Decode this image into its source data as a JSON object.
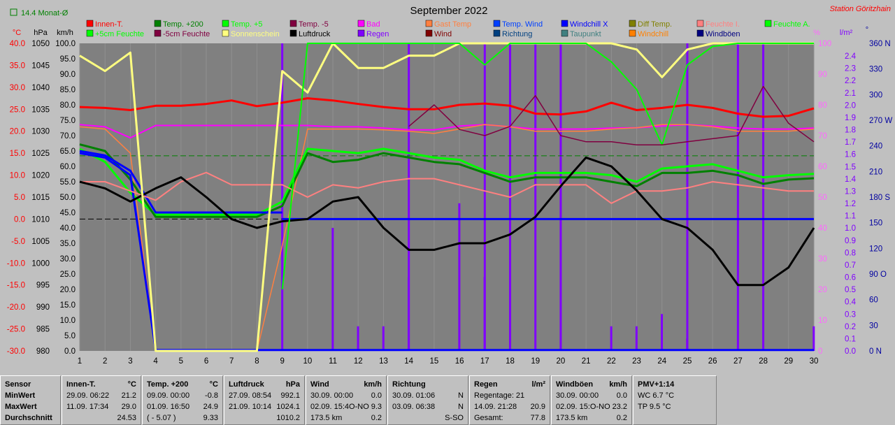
{
  "top_label": "14.4 Monat-Ø",
  "station": "Station Göritzhain",
  "chart_data": {
    "type": "line",
    "title": "September 2022",
    "x": [
      1,
      2,
      3,
      4,
      5,
      6,
      7,
      8,
      9,
      10,
      11,
      12,
      13,
      14,
      15,
      16,
      17,
      18,
      19,
      20,
      21,
      22,
      23,
      24,
      25,
      26,
      27,
      28,
      29,
      30
    ],
    "xlim": [
      1,
      30
    ],
    "axes": {
      "temp": {
        "unit": "°C",
        "range": [
          -30,
          40
        ],
        "ticks": [
          "40.0",
          "35.0",
          "30.0",
          "25.0",
          "20.0",
          "15.0",
          "10.0",
          "5.0",
          "0.0",
          "-5.0",
          "-10.0",
          "-15.0",
          "-20.0",
          "-25.0",
          "-30.0"
        ],
        "color": "#ff0000"
      },
      "press": {
        "unit": "hPa",
        "range": [
          980,
          1050
        ],
        "ticks": [
          "1050",
          "1045",
          "1040",
          "1035",
          "1030",
          "1025",
          "1020",
          "1015",
          "1010",
          "1005",
          "1000",
          "995",
          "990",
          "985",
          "980"
        ],
        "color": "#000000"
      },
      "wind": {
        "unit": "km/h",
        "range": [
          0,
          100
        ],
        "ticks": [
          "100.0",
          "95.0",
          "90.0",
          "85.0",
          "80.0",
          "75.0",
          "70.0",
          "65.0",
          "60.0",
          "55.0",
          "50.0",
          "45.0",
          "40.0",
          "35.0",
          "30.0",
          "25.0",
          "20.0",
          "15.0",
          "10.0",
          "5.0",
          "0.0"
        ],
        "color": "#000000"
      },
      "pct": {
        "unit": "%",
        "range": [
          0,
          100
        ],
        "ticks": [
          "100",
          "90",
          "80",
          "70",
          "60",
          "50",
          "40",
          "30",
          "20",
          "10",
          "0"
        ],
        "color": "#ff66ff"
      },
      "rain": {
        "unit": "l/m²",
        "range": [
          0,
          2.5
        ],
        "ticks": [
          "2.4",
          "2.3",
          "2.2",
          "2.1",
          "2.0",
          "1.9",
          "1.8",
          "1.7",
          "1.6",
          "1.5",
          "1.4",
          "1.3",
          "1.2",
          "1.1",
          "1.0",
          "0.9",
          "0.8",
          "0.7",
          "0.6",
          "0.5",
          "0.4",
          "0.3",
          "0.2",
          "0.1",
          "0.0"
        ],
        "color": "#8000ff"
      },
      "dir": {
        "unit": "°",
        "range": [
          0,
          360
        ],
        "ticks": [
          "360 N",
          "330",
          "300",
          "270 W",
          "240",
          "210",
          "180 S",
          "150",
          "120",
          "90 O",
          "60",
          "30",
          "0 N"
        ],
        "color": "#0000a0"
      }
    },
    "legend": [
      {
        "name": "Innen-T.",
        "color": "#ff0000"
      },
      {
        "name": "Temp. +200",
        "color": "#008000"
      },
      {
        "name": "Temp. +5",
        "color": "#00ff00"
      },
      {
        "name": "Temp. -5",
        "color": "#800040"
      },
      {
        "name": "Bad",
        "color": "#ff00ff"
      },
      {
        "name": "Gast Temp",
        "color": "#ff8040"
      },
      {
        "name": "Temp. Wind",
        "color": "#0040ff"
      },
      {
        "name": "Windchill X",
        "color": "#0000ff"
      },
      {
        "name": "Diff Temp.",
        "color": "#808000"
      },
      {
        "name": "Feuchte I.",
        "color": "#ff8080"
      },
      {
        "name": "Feuchte A.",
        "color": "#00ff00"
      },
      {
        "name": "+5cm Feuchte",
        "color": "#00ff00"
      },
      {
        "name": "-5cm Feuchte",
        "color": "#800040"
      },
      {
        "name": "Sonnenschein",
        "color": "#ffff80"
      },
      {
        "name": "Luftdruck",
        "color": "#000000"
      },
      {
        "name": "Regen",
        "color": "#8000ff"
      },
      {
        "name": "Wind",
        "color": "#800000"
      },
      {
        "name": "Richtung",
        "color": "#004080"
      },
      {
        "name": "Taupunkt",
        "color": "#408080"
      },
      {
        "name": "Windchill",
        "color": "#ff8000"
      },
      {
        "name": "Windböen",
        "color": "#000080"
      }
    ],
    "series": [
      {
        "name": "Innen-T.",
        "axis": "temp",
        "color": "#ff0000",
        "width": 3,
        "values": [
          25.5,
          25.3,
          24.8,
          25.8,
          25.8,
          26.2,
          27.0,
          25.7,
          26.5,
          27.5,
          27.0,
          26.2,
          25.5,
          25.0,
          25.0,
          26.0,
          26.3,
          25.8,
          24.0,
          23.8,
          24.5,
          26.5,
          24.8,
          25.3,
          26.0,
          25.3,
          24.0,
          23.3,
          23.5,
          25.2
        ]
      },
      {
        "name": "Bad",
        "axis": "temp",
        "color": "#ff00ff",
        "width": 2,
        "values": [
          21.5,
          21.0,
          18.5,
          21.3,
          21.3,
          21.3,
          21.3,
          21.3,
          21.3,
          21.3,
          21.0,
          21.0,
          20.7,
          20.3,
          20.3,
          21.2,
          21.5,
          21.0,
          20.5,
          20.5,
          20.5,
          20.7,
          20.8,
          21.2,
          21.5,
          21.2,
          20.7,
          20.5,
          20.5,
          20.7
        ]
      },
      {
        "name": "Gast Temp",
        "axis": "temp",
        "color": "#ff8040",
        "width": 1.5,
        "values": [
          21.0,
          20.5,
          15.0,
          -30,
          -30,
          -30,
          -30,
          -30,
          -6.0,
          20.5,
          20.5,
          20.5,
          20.3,
          20.0,
          19.5,
          20.5,
          21.5,
          21.0,
          20.0,
          20.0,
          20.0,
          20.5,
          20.8,
          21.5,
          21.5,
          21.0,
          20.0,
          20.0,
          20.0,
          20.5
        ]
      },
      {
        "name": "Temp. +5",
        "axis": "temp",
        "color": "#00ff00",
        "width": 3,
        "values": [
          16.0,
          13.0,
          6.0,
          1.0,
          1.0,
          1.0,
          1.0,
          1.0,
          4.0,
          16.0,
          15.5,
          15.0,
          16.0,
          15.0,
          14.0,
          13.5,
          11.0,
          9.5,
          10.5,
          10.5,
          10.5,
          10.0,
          8.5,
          11.5,
          12.0,
          12.5,
          11.0,
          9.5,
          10.0,
          10.3
        ]
      },
      {
        "name": "Temp. +200",
        "axis": "temp",
        "color": "#008000",
        "width": 3,
        "values": [
          17.0,
          15.5,
          9.0,
          0.5,
          0.5,
          0.5,
          0.5,
          0.5,
          3.0,
          15.0,
          13.0,
          13.5,
          15.0,
          14.0,
          13.0,
          12.5,
          10.5,
          8.5,
          9.5,
          9.5,
          9.5,
          8.5,
          7.5,
          10.5,
          10.5,
          11.0,
          10.0,
          8.0,
          9.0,
          9.3
        ]
      },
      {
        "name": "Windchill X",
        "axis": "temp",
        "color": "#0000ff",
        "width": 3,
        "values": [
          15.0,
          14.0,
          10.0,
          -29.8,
          -29.8,
          -29.8,
          -29.8,
          -29.8,
          -29.8,
          -29.8,
          -29.8,
          -29.8,
          -29.8,
          -29.8,
          -29.8,
          -29.8,
          -29.8,
          -29.8,
          -29.8,
          -29.8,
          -29.8,
          -29.8,
          -29.8,
          -29.8,
          -29.8,
          -29.8,
          -29.8,
          -29.8,
          -29.8,
          -29.8
        ]
      },
      {
        "name": "Windchill X (0)",
        "axis": "temp",
        "color": "#0000ff",
        "width": 3,
        "values": [
          15.5,
          14.5,
          11.0,
          1.5,
          1.5,
          1.5,
          1.5,
          1.5,
          1.5,
          null,
          null,
          null,
          null,
          null,
          null,
          null,
          null,
          null,
          null,
          null,
          null,
          null,
          null,
          null,
          null,
          null,
          null,
          null,
          null,
          null
        ]
      },
      {
        "name": "Windchill (flat)",
        "axis": "temp",
        "color": "#0000ff",
        "width": 3,
        "values": [
          null,
          null,
          null,
          null,
          null,
          null,
          null,
          null,
          0,
          0,
          0,
          0,
          0,
          0,
          0,
          0,
          0,
          0,
          0,
          0,
          0,
          0,
          0,
          0,
          0,
          0,
          0,
          0,
          0,
          0
        ]
      },
      {
        "name": "Feuchte I.",
        "axis": "pct",
        "color": "#ff8080",
        "width": 2,
        "values": [
          55,
          55,
          52,
          49,
          55,
          58,
          54,
          54,
          54,
          50,
          54,
          53,
          55,
          56,
          56,
          54,
          52,
          50,
          54,
          54,
          54,
          48,
          52,
          52,
          53,
          55,
          54,
          53,
          52,
          52
        ]
      },
      {
        "name": "Luftdruck",
        "axis": "press",
        "color": "#000000",
        "width": 3,
        "values": [
          1018.5,
          1017.0,
          1014.0,
          1017.0,
          1019.5,
          1015.0,
          1010.0,
          1008.0,
          1009.5,
          1010.0,
          1014.0,
          1015.0,
          1008.0,
          1003.0,
          1003.0,
          1004.5,
          1004.5,
          1006.5,
          1010.5,
          1017.5,
          1024.0,
          1022.0,
          1016.5,
          1010.0,
          1008.0,
          1003.0,
          995.0,
          995.0,
          999.0,
          1008.0
        ]
      },
      {
        "name": "Sonnenschein",
        "axis": "pct",
        "color": "#ffff80",
        "width": 3,
        "values": [
          96,
          91,
          97,
          0,
          0,
          0,
          0,
          0,
          91,
          84,
          100,
          92,
          92,
          96,
          96,
          100,
          100,
          100,
          100,
          100,
          100,
          100,
          98,
          89,
          98,
          100,
          100,
          100,
          100,
          100
        ]
      },
      {
        "name": "Feuchte A.",
        "axis": "pct",
        "color": "#00ff00",
        "width": 2,
        "values": [
          null,
          null,
          null,
          null,
          null,
          null,
          null,
          null,
          20,
          100,
          100,
          100,
          100,
          100,
          100,
          100,
          93,
          100,
          100,
          100,
          100,
          94,
          85,
          67,
          93,
          99,
          100,
          100,
          100,
          100
        ]
      },
      {
        "name": "Wind",
        "axis": "pct",
        "color": "#800040",
        "width": 1.5,
        "values": [
          null,
          null,
          null,
          null,
          null,
          null,
          null,
          null,
          null,
          null,
          null,
          null,
          null,
          73,
          80,
          72,
          70,
          73,
          83,
          70,
          68,
          68,
          67,
          67,
          68,
          69,
          70,
          86,
          74,
          68
        ]
      },
      {
        "name": "Regen",
        "axis": "rain",
        "type": "bar",
        "color": "#8000ff",
        "values": [
          0,
          0,
          0,
          0,
          0,
          0,
          0,
          0,
          0,
          1.0,
          0.2,
          0.2,
          0.6,
          0,
          1.2,
          0.6,
          0,
          0,
          0,
          0,
          0.2,
          0.2,
          0.3,
          0.1,
          0,
          0,
          0,
          0,
          0.2,
          0
        ]
      }
    ],
    "rain_events_x": [
      9,
      14,
      17,
      18,
      19,
      20,
      25,
      27,
      28
    ],
    "reference_lines": [
      {
        "axis": "temp",
        "value": 14.4,
        "color": "#008000",
        "style": "dashed"
      },
      {
        "axis": "temp",
        "value": 0,
        "color": "#000000",
        "style": "dashed"
      }
    ]
  },
  "stats": {
    "row_labels": {
      "title": "Sensor",
      "min": "MinWert",
      "max": "MaxWert",
      "avg": "Durchschnitt"
    },
    "panels": [
      {
        "id": "innen",
        "title": "Innen-T.",
        "unit": "°C",
        "min_time": "29.09.  06:22",
        "min_val": "21.2",
        "max_time": "11.09.  17:34",
        "max_val": "29.0",
        "avg_time": "",
        "avg_val": "24.53"
      },
      {
        "id": "temp200",
        "title": "Temp. +200",
        "unit": "°C",
        "min_time": "09.09.  00:00",
        "min_val": "-0.8",
        "max_time": "01.09.  16:50",
        "max_val": "24.9",
        "avg_time": "( - 5.07 )",
        "avg_val": "9.33"
      },
      {
        "id": "luftdruck",
        "title": "Luftdruck",
        "unit": "hPa",
        "min_time": "27.09.  08:54",
        "min_val": "992.1",
        "max_time": "21.09.  10:14",
        "max_val": "1024.1",
        "avg_time": "",
        "avg_val": "1010.2"
      },
      {
        "id": "wind",
        "title": "Wind",
        "unit": "km/h",
        "min_time": "30.09.  00:00",
        "min_val": "0.0",
        "max_time": "02.09.  15:4O-NO",
        "max_val": "9.3",
        "avg_time": "173.5 km",
        "avg_val": "0.2"
      },
      {
        "id": "richtung",
        "title": "Richtung",
        "unit": "",
        "min_time": "30.09.  01:06",
        "min_val": "N",
        "max_time": "03.09.  06:38",
        "max_val": "N",
        "avg_time": "",
        "avg_val": "S-SO"
      },
      {
        "id": "regen",
        "title": "Regen",
        "unit": "l/m²",
        "min_time": "Regentage: 21",
        "min_val": "",
        "max_time": "14.09.  21:28",
        "max_val": "20.9",
        "avg_time": "Gesamt:",
        "avg_val": "77.8"
      },
      {
        "id": "windboeen",
        "title": "Windböen",
        "unit": "km/h",
        "min_time": "30.09.  00:00",
        "min_val": "0.0",
        "max_time": "02.09.  15:O-NO",
        "max_val": "23.2",
        "avg_time": "173.5 km",
        "avg_val": "0.2"
      },
      {
        "id": "pmv",
        "title": "PMV+1:14",
        "unit": "",
        "min_time": "WC 6.7 °C",
        "min_val": "",
        "max_time": "TP 9.5 °C",
        "max_val": "",
        "avg_time": "",
        "avg_val": ""
      }
    ]
  }
}
